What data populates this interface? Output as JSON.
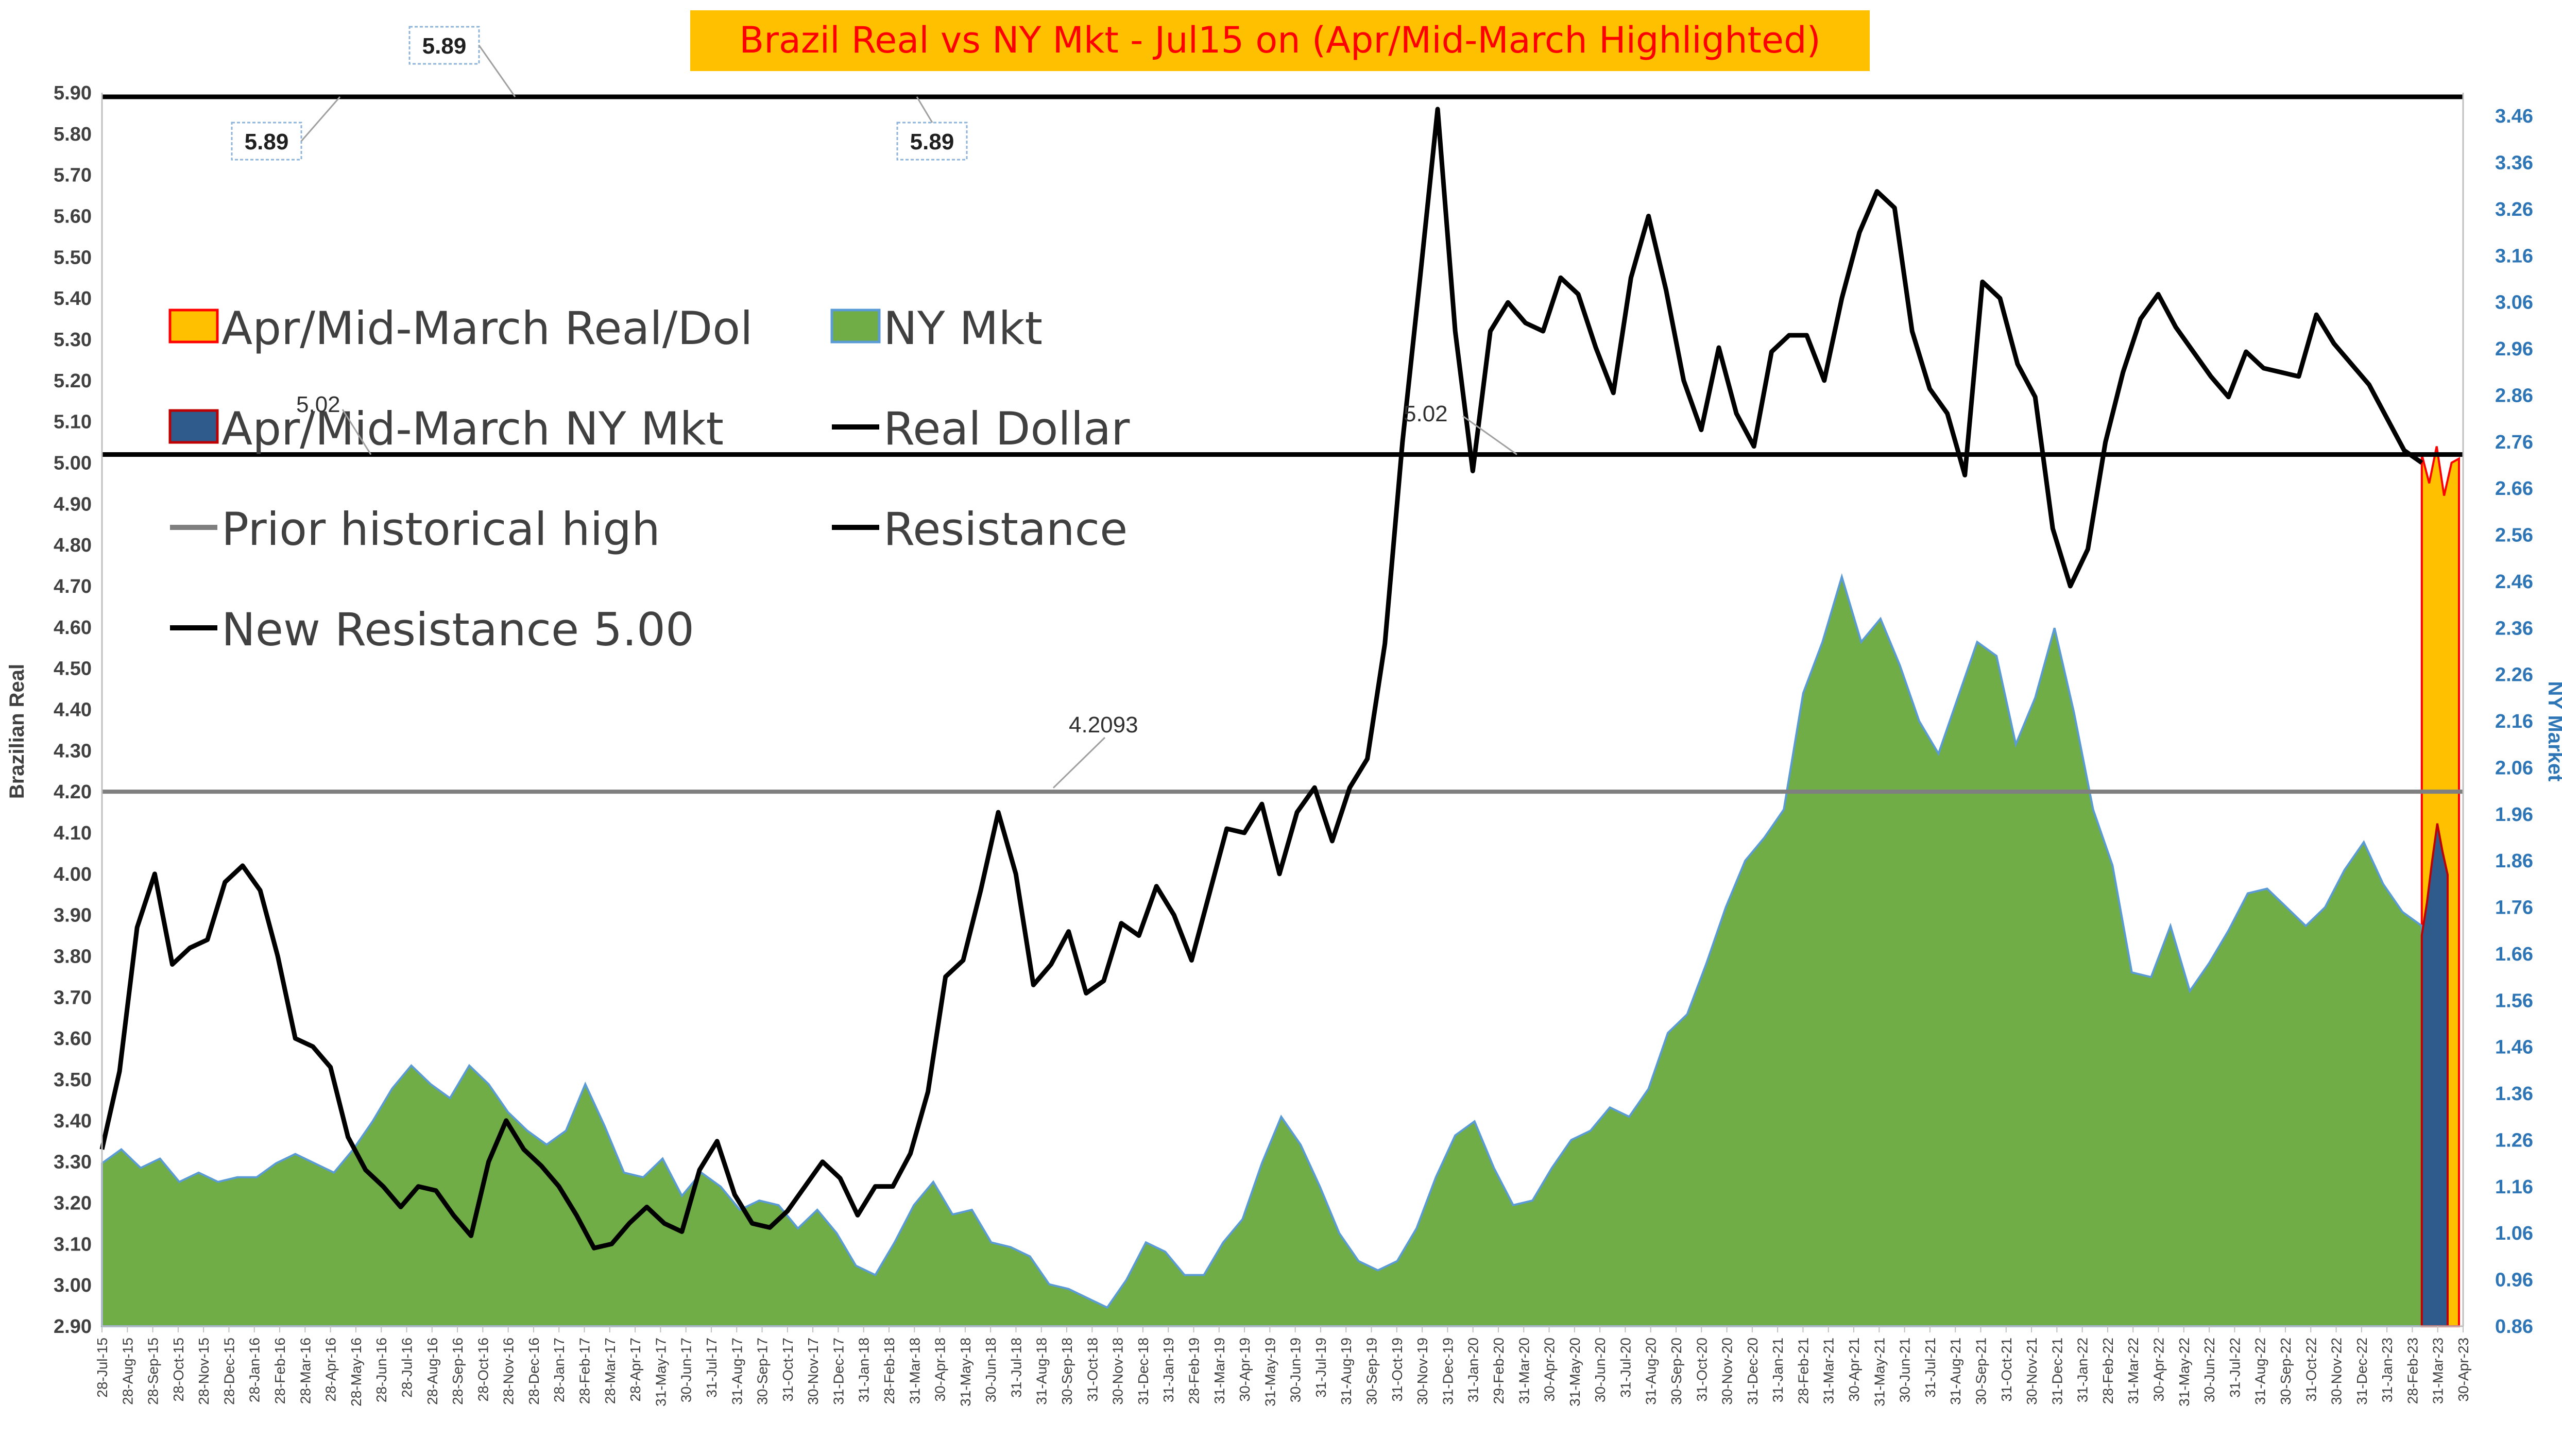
{
  "chart_data": {
    "type": "area",
    "title": "Brazil Real vs NY Mkt - Jul15 on (Apr/Mid-March Highlighted)",
    "ylabel": "Brazilian Real",
    "y2label": "NY Market",
    "ylim": [
      2.9,
      5.9
    ],
    "y2lim": [
      0.86,
      3.51
    ],
    "yticks": [
      "2.90",
      "3.00",
      "3.10",
      "3.20",
      "3.30",
      "3.40",
      "3.50",
      "3.60",
      "3.70",
      "3.80",
      "3.90",
      "4.00",
      "4.10",
      "4.20",
      "4.30",
      "4.40",
      "4.50",
      "4.60",
      "4.70",
      "4.80",
      "4.90",
      "5.00",
      "5.10",
      "5.20",
      "5.30",
      "5.40",
      "5.50",
      "5.60",
      "5.70",
      "5.80",
      "5.90"
    ],
    "y2ticks": [
      "0.86",
      "0.96",
      "1.06",
      "1.16",
      "1.26",
      "1.36",
      "1.46",
      "1.56",
      "1.66",
      "1.76",
      "1.86",
      "1.96",
      "2.06",
      "2.16",
      "2.26",
      "2.36",
      "2.46",
      "2.56",
      "2.66",
      "2.76",
      "2.86",
      "2.96",
      "3.06",
      "3.16",
      "3.26",
      "3.36",
      "3.46"
    ],
    "xticks": [
      "28-Jul-15",
      "28-Aug-15",
      "28-Sep-15",
      "28-Oct-15",
      "28-Nov-15",
      "28-Dec-15",
      "28-Jan-16",
      "28-Feb-16",
      "28-Mar-16",
      "28-Apr-16",
      "28-May-16",
      "28-Jun-16",
      "28-Jul-16",
      "28-Aug-16",
      "28-Sep-16",
      "28-Oct-16",
      "28-Nov-16",
      "28-Dec-16",
      "28-Jan-17",
      "28-Feb-17",
      "28-Mar-17",
      "28-Apr-17",
      "31-May-17",
      "30-Jun-17",
      "31-Jul-17",
      "31-Aug-17",
      "30-Sep-17",
      "31-Oct-17",
      "30-Nov-17",
      "31-Dec-17",
      "31-Jan-18",
      "28-Feb-18",
      "31-Mar-18",
      "30-Apr-18",
      "31-May-18",
      "30-Jun-18",
      "31-Jul-18",
      "31-Aug-18",
      "30-Sep-18",
      "31-Oct-18",
      "30-Nov-18",
      "31-Dec-18",
      "31-Jan-19",
      "28-Feb-19",
      "31-Mar-19",
      "30-Apr-19",
      "31-May-19",
      "30-Jun-19",
      "31-Jul-19",
      "31-Aug-19",
      "30-Sep-19",
      "31-Oct-19",
      "30-Nov-19",
      "31-Dec-19",
      "31-Jan-20",
      "29-Feb-20",
      "31-Mar-20",
      "30-Apr-20",
      "31-May-20",
      "30-Jun-20",
      "31-Jul-20",
      "31-Aug-20",
      "30-Sep-20",
      "31-Oct-20",
      "30-Nov-20",
      "31-Dec-20",
      "31-Jan-21",
      "28-Feb-21",
      "31-Mar-21",
      "30-Apr-21",
      "31-May-21",
      "30-Jun-21",
      "31-Jul-21",
      "31-Aug-21",
      "30-Sep-21",
      "31-Oct-21",
      "30-Nov-21",
      "31-Dec-21",
      "31-Jan-22",
      "28-Feb-22",
      "31-Mar-22",
      "30-Apr-22",
      "31-May-22",
      "30-Jun-22",
      "31-Jul-22",
      "31-Aug-22",
      "30-Sep-22",
      "31-Oct-22",
      "30-Nov-22",
      "31-Dec-22",
      "31-Jan-23",
      "28-Feb-23",
      "31-Mar-23",
      "30-Apr-23"
    ],
    "series": [
      {
        "name": "Real Dollar",
        "axis": "left",
        "values": [
          3.33,
          3.52,
          3.87,
          4.0,
          3.78,
          3.82,
          3.84,
          3.98,
          4.02,
          3.96,
          3.8,
          3.6,
          3.58,
          3.53,
          3.36,
          3.28,
          3.24,
          3.19,
          3.24,
          3.23,
          3.17,
          3.12,
          3.3,
          3.4,
          3.33,
          3.29,
          3.24,
          3.17,
          3.09,
          3.1,
          3.15,
          3.19,
          3.15,
          3.13,
          3.28,
          3.35,
          3.22,
          3.15,
          3.14,
          3.18,
          3.24,
          3.3,
          3.26,
          3.17,
          3.24,
          3.24,
          3.32,
          3.47,
          3.75,
          3.79,
          3.96,
          4.15,
          4.0,
          3.73,
          3.78,
          3.86,
          3.71,
          3.74,
          3.88,
          3.85,
          3.97,
          3.9,
          3.79,
          3.95,
          4.11,
          4.1,
          4.17,
          4.0,
          4.15,
          4.21,
          4.08,
          4.21,
          4.28,
          4.56,
          5.05,
          5.45,
          5.86,
          5.32,
          4.98,
          5.32,
          5.39,
          5.34,
          5.32,
          5.45,
          5.41,
          5.28,
          5.17,
          5.45,
          5.6,
          5.42,
          5.2,
          5.08,
          5.28,
          5.12,
          5.04,
          5.27,
          5.31,
          5.31,
          5.2,
          5.4,
          5.56,
          5.66,
          5.62,
          5.32,
          5.18,
          5.12,
          4.97,
          5.44,
          5.4,
          5.24,
          5.16,
          4.84,
          4.7,
          4.79,
          5.05,
          5.22,
          5.35,
          5.41,
          5.33,
          5.27,
          5.21,
          5.16,
          5.27,
          5.23,
          5.22,
          5.21,
          5.36,
          5.29,
          5.24,
          5.19,
          5.11,
          5.03,
          5.0
        ]
      },
      {
        "name": "NY Mkt",
        "axis": "right",
        "values": [
          1.21,
          1.24,
          1.2,
          1.22,
          1.17,
          1.19,
          1.17,
          1.18,
          1.18,
          1.21,
          1.23,
          1.21,
          1.19,
          1.24,
          1.3,
          1.37,
          1.42,
          1.38,
          1.35,
          1.42,
          1.38,
          1.32,
          1.28,
          1.25,
          1.28,
          1.38,
          1.29,
          1.19,
          1.18,
          1.22,
          1.14,
          1.19,
          1.16,
          1.11,
          1.13,
          1.12,
          1.07,
          1.11,
          1.06,
          0.99,
          0.97,
          1.04,
          1.12,
          1.17,
          1.1,
          1.11,
          1.04,
          1.03,
          1.01,
          0.95,
          0.94,
          0.92,
          0.9,
          0.96,
          1.04,
          1.02,
          0.97,
          0.97,
          1.04,
          1.09,
          1.21,
          1.31,
          1.25,
          1.16,
          1.06,
          1.0,
          0.98,
          1.0,
          1.07,
          1.18,
          1.27,
          1.3,
          1.2,
          1.12,
          1.13,
          1.2,
          1.26,
          1.28,
          1.33,
          1.31,
          1.37,
          1.49,
          1.53,
          1.64,
          1.76,
          1.86,
          1.91,
          1.97,
          2.22,
          2.33,
          2.47,
          2.33,
          2.38,
          2.28,
          2.16,
          2.09,
          2.21,
          2.33,
          2.3,
          2.11,
          2.21,
          2.36,
          2.18,
          1.97,
          1.85,
          1.62,
          1.61,
          1.72,
          1.58,
          1.64,
          1.71,
          1.79,
          1.8,
          1.76,
          1.72,
          1.76,
          1.84,
          1.9,
          1.81,
          1.75,
          1.72
        ]
      },
      {
        "name": "Apr/Mid-March NY Mkt",
        "axis": "right",
        "values": [
          1.7,
          1.77,
          1.86,
          1.94,
          1.88,
          1.83
        ]
      },
      {
        "name": "Apr/Mid-March Real/Dol",
        "axis": "left",
        "values": [
          5.02,
          4.95,
          5.04,
          4.92,
          5.0,
          5.01
        ]
      },
      {
        "name": "Prior historical high",
        "axis": "left",
        "value": 4.2
      },
      {
        "name": "Resistance",
        "axis": "left",
        "value": 5.89
      },
      {
        "name": "New Resistance 5.00",
        "axis": "left",
        "value": 5.02
      }
    ],
    "annotations": [
      {
        "text": "5.89",
        "boxed": true,
        "at": "top-left"
      },
      {
        "text": "5.89",
        "boxed": true,
        "at": "left"
      },
      {
        "text": "5.89",
        "boxed": true,
        "at": "center"
      },
      {
        "text": "5.02",
        "boxed": false,
        "at": "resistance-left"
      },
      {
        "text": "5.02",
        "boxed": false,
        "at": "resistance-mid"
      },
      {
        "text": "4.2093",
        "boxed": false,
        "at": "jul-2018-peak"
      }
    ],
    "legend": {
      "placement": "top-left",
      "items": [
        {
          "label": "Apr/Mid-March Real/Dol",
          "marker": "box",
          "fill": "#ffc000",
          "stroke": "#ff0000"
        },
        {
          "label": "NY Mkt",
          "marker": "box",
          "fill": "#70ad47",
          "stroke": "#5b9bd5"
        },
        {
          "label": "Apr/Mid-March  NY Mkt",
          "marker": "box",
          "fill": "#2e5a8c",
          "stroke": "#c00000"
        },
        {
          "label": "Real Dollar",
          "marker": "line",
          "stroke": "#000000"
        },
        {
          "label": "Prior historical high",
          "marker": "line",
          "stroke": "#7f7f7f"
        },
        {
          "label": "Resistance",
          "marker": "line",
          "stroke": "#000000"
        },
        {
          "label": "New Resistance 5.00",
          "marker": "line",
          "stroke": "#000000"
        }
      ]
    },
    "colors": {
      "ny_fill": "#70ad47",
      "ny_edge": "#5b9bd5",
      "highlight_fill": "#ffc000",
      "highlight_edge": "#ff0000",
      "highlight_ny_fill": "#2e5a8c",
      "real_line": "#000000",
      "prior_high_line": "#7f7f7f",
      "title_bg": "#ffc000",
      "title_text": "#ff0000",
      "left_axis_text": "#404040",
      "right_axis_text": "#2e75b6"
    },
    "grid": false
  }
}
